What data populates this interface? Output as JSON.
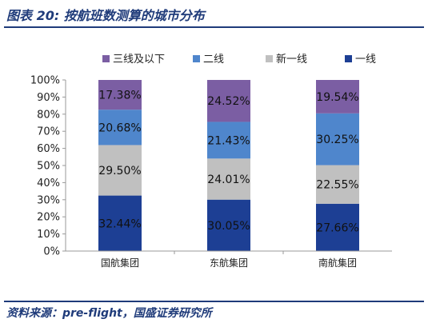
{
  "header": {
    "title": "图表 20: 按航班数测算的城市分布"
  },
  "footer": {
    "source": "资料来源：pre-flight，国盛证券研究所"
  },
  "colors": {
    "rule": "#1f3b7a",
    "tier1": "#1d3f94",
    "new_tier1": "#c0c0c0",
    "tier2": "#4f86cc",
    "tier3_below": "#7b5ea3"
  },
  "chart_data": {
    "type": "bar",
    "stacked": true,
    "percent": true,
    "categories": [
      "国航集团",
      "东航集团",
      "南航集团"
    ],
    "series": [
      {
        "name": "一线",
        "color": "#1d3f94",
        "values": [
          32.44,
          30.05,
          27.66
        ],
        "labels": [
          "32.44%",
          "30.05%",
          "27.66%"
        ]
      },
      {
        "name": "新一线",
        "color": "#c0c0c0",
        "values": [
          29.5,
          24.01,
          22.55
        ],
        "labels": [
          "29.50%",
          "24.01%",
          "22.55%"
        ]
      },
      {
        "name": "二线",
        "color": "#4f86cc",
        "values": [
          20.68,
          21.43,
          30.25
        ],
        "labels": [
          "20.68%",
          "21.43%",
          "30.25%"
        ]
      },
      {
        "name": "三线及以下",
        "color": "#7b5ea3",
        "values": [
          17.38,
          24.52,
          19.54
        ],
        "labels": [
          "17.38%",
          "24.52%",
          "19.54%"
        ]
      }
    ],
    "legend_order": [
      "三线及以下",
      "二线",
      "新一线",
      "一线"
    ],
    "y_ticks": [
      "0%",
      "10%",
      "20%",
      "30%",
      "40%",
      "50%",
      "60%",
      "70%",
      "80%",
      "90%",
      "100%"
    ],
    "ylim": [
      0,
      100
    ],
    "legend_position": "top",
    "grid": false
  }
}
